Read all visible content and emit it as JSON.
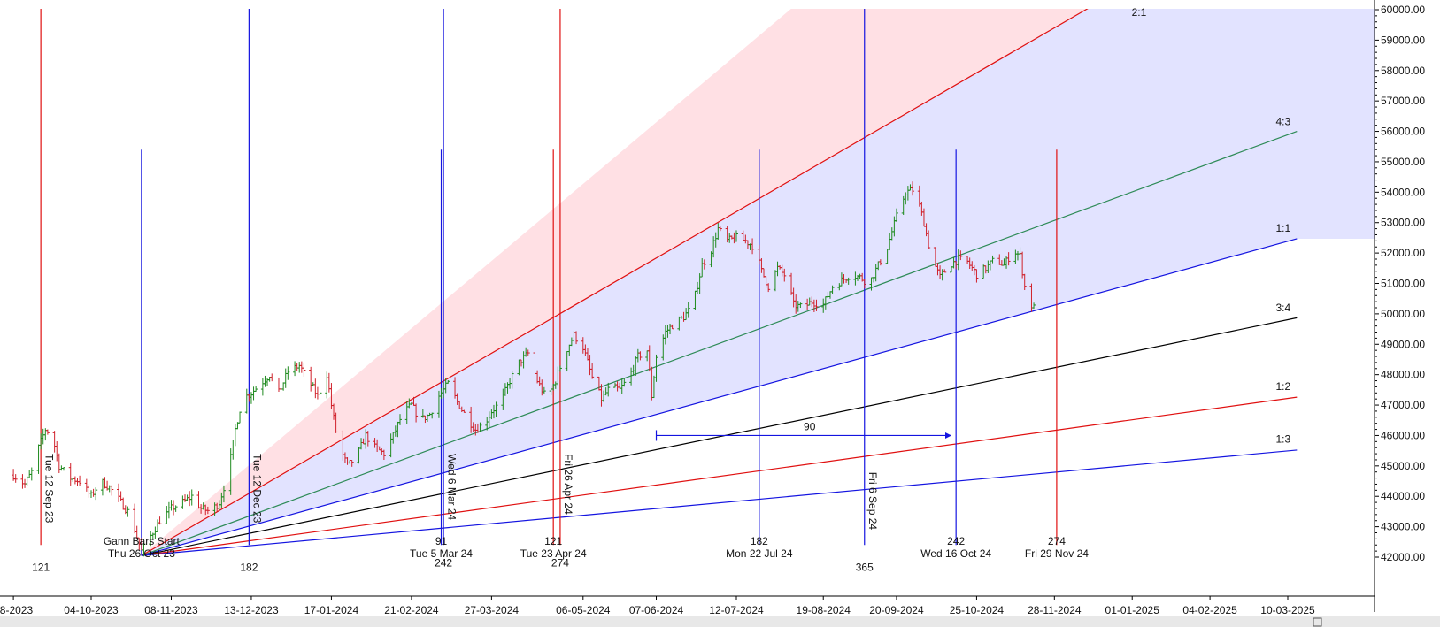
{
  "chart_data": {
    "type": "bar",
    "subtype": "ohlc-price-chart-with-gann-fan",
    "x_tick_labels": [
      "08-2023",
      "04-10-2023",
      "08-11-2023",
      "13-12-2023",
      "17-01-2024",
      "21-02-2024",
      "27-03-2024",
      "06-05-2024",
      "07-06-2024",
      "12-07-2024",
      "19-08-2024",
      "20-09-2024",
      "25-10-2024",
      "28-11-2024",
      "01-01-2025",
      "04-02-2025",
      "10-03-2025"
    ],
    "x_tick_dates": [
      "2023-08-31",
      "2023-10-04",
      "2023-11-08",
      "2023-12-13",
      "2024-01-17",
      "2024-02-21",
      "2024-03-27",
      "2024-05-06",
      "2024-06-07",
      "2024-07-12",
      "2024-08-19",
      "2024-09-20",
      "2024-10-25",
      "2024-11-28",
      "2025-01-01",
      "2025-02-04",
      "2025-03-10"
    ],
    "y_ticks": [
      42000,
      43000,
      44000,
      45000,
      46000,
      47000,
      48000,
      49000,
      50000,
      51000,
      52000,
      53000,
      54000,
      55000,
      56000,
      57000,
      58000,
      59000,
      60000
    ],
    "y_tick_labels": [
      "42000.00",
      "43000.00",
      "44000.00",
      "45000.00",
      "46000.00",
      "47000.00",
      "48000.00",
      "49000.00",
      "50000.00",
      "51000.00",
      "52000.00",
      "53000.00",
      "54000.00",
      "55000.00",
      "56000.00",
      "57000.00",
      "58000.00",
      "59000.00",
      "60000.00"
    ],
    "ylim": [
      41800,
      60100
    ],
    "colors": {
      "up": "#1e8a1e",
      "down": "#d0202a",
      "red_line": "#e01010",
      "blue_line": "#1414e0",
      "green_line": "#2e8b57",
      "black_line": "#000000",
      "red_fill": "#ffe0e4",
      "blue_fill": "#e2e3ff"
    },
    "gann_origin": {
      "date": "2023-10-26",
      "price": 42050
    },
    "gann_fan": [
      {
        "label": "2:1",
        "end": {
          "date": "2024-12-14",
          "price": 60100
        },
        "color": "red_line"
      },
      {
        "label": "4:3",
        "end": {
          "date": "2025-03-14",
          "price": 56000
        },
        "color": "green_line"
      },
      {
        "label": "1:1",
        "end": {
          "date": "2025-03-14",
          "price": 52470
        },
        "color": "blue_line"
      },
      {
        "label": "3:4",
        "end": {
          "date": "2025-03-14",
          "price": 49870
        },
        "color": "black_line"
      },
      {
        "label": "1:2",
        "end": {
          "date": "2025-03-14",
          "price": 47260
        },
        "color": "red_line"
      },
      {
        "label": "1:3",
        "end": {
          "date": "2025-03-14",
          "price": 45520
        },
        "color": "blue_line"
      }
    ],
    "fan_label_positions": [
      {
        "text": "2:1",
        "date": "2025-01-04",
        "price": 59800
      },
      {
        "text": "4:3",
        "date": "2025-03-08",
        "price": 56200
      },
      {
        "text": "1:1",
        "date": "2025-03-08",
        "price": 52700
      },
      {
        "text": "3:4",
        "date": "2025-03-08",
        "price": 50080
      },
      {
        "text": "1:2",
        "date": "2025-03-08",
        "price": 47500
      },
      {
        "text": "1:3",
        "date": "2025-03-08",
        "price": 45760
      }
    ],
    "vertical_lines": [
      {
        "date": "2023-09-12",
        "color": "red_line",
        "top": 60100,
        "bottom": 42400
      },
      {
        "date": "2023-10-26",
        "color": "blue_line",
        "top": 55400,
        "bottom": 42050
      },
      {
        "date": "2023-12-12",
        "color": "blue_line",
        "top": 60100,
        "bottom": 42400
      },
      {
        "date": "2024-03-05",
        "color": "blue_line",
        "top": 55400,
        "bottom": 42400
      },
      {
        "date": "2024-03-06",
        "color": "blue_line",
        "top": 60100,
        "bottom": 42400
      },
      {
        "date": "2024-04-23",
        "color": "red_line",
        "top": 55400,
        "bottom": 42400
      },
      {
        "date": "2024-04-26",
        "color": "red_line",
        "top": 60100,
        "bottom": 42400
      },
      {
        "date": "2024-07-22",
        "color": "blue_line",
        "top": 55400,
        "bottom": 42400
      },
      {
        "date": "2024-09-06",
        "color": "blue_line",
        "top": 60100,
        "bottom": 42400
      },
      {
        "date": "2024-10-16",
        "color": "blue_line",
        "top": 55400,
        "bottom": 42400
      },
      {
        "date": "2024-11-29",
        "color": "red_line",
        "top": 55400,
        "bottom": 42400
      }
    ],
    "fills": [
      {
        "color": "red_fill",
        "upper": [
          {
            "date": "2023-10-26",
            "price": 42050
          },
          {
            "date": "2024-08-06",
            "price": 60100
          }
        ],
        "lower_line": "2:1"
      },
      {
        "color": "blue_fill",
        "upper_line": "2:1",
        "lower_line": "1:1"
      }
    ],
    "measure_arrow": {
      "start": {
        "date": "2024-06-07",
        "price": 46000
      },
      "end": {
        "date": "2024-10-14",
        "price": 46000
      },
      "label": "90",
      "label_date": "2024-08-13",
      "label_price": 46170,
      "color": "blue_line"
    },
    "annotations": [
      {
        "text": "Gann Bars Start",
        "date": "2023-10-26",
        "price": 42400,
        "rotate": false
      },
      {
        "text": "Thu 26 Oct 23",
        "date": "2023-10-26",
        "price": 42000,
        "rotate": false
      },
      {
        "text": "121",
        "date": "2023-09-12",
        "price": 41550,
        "rotate": false
      },
      {
        "text": "182",
        "date": "2023-12-12",
        "price": 41550,
        "rotate": false
      },
      {
        "text": "91",
        "date": "2024-03-05",
        "price": 42400,
        "rotate": false
      },
      {
        "text": "Tue 5 Mar 24",
        "date": "2024-03-05",
        "price": 42000,
        "rotate": false
      },
      {
        "text": "242",
        "date": "2024-03-06",
        "price": 41700,
        "rotate": false
      },
      {
        "text": "121",
        "date": "2024-04-23",
        "price": 42400,
        "rotate": false
      },
      {
        "text": "Tue 23 Apr 24",
        "date": "2024-04-23",
        "price": 42000,
        "rotate": false
      },
      {
        "text": "274",
        "date": "2024-04-26",
        "price": 41700,
        "rotate": false
      },
      {
        "text": "182",
        "date": "2024-07-22",
        "price": 42400,
        "rotate": false
      },
      {
        "text": "Mon 22 Jul 24",
        "date": "2024-07-22",
        "price": 42000,
        "rotate": false
      },
      {
        "text": "365",
        "date": "2024-09-06",
        "price": 41550,
        "rotate": false
      },
      {
        "text": "242",
        "date": "2024-10-16",
        "price": 42400,
        "rotate": false
      },
      {
        "text": "Wed 16 Oct 24",
        "date": "2024-10-16",
        "price": 42000,
        "rotate": false
      },
      {
        "text": "274",
        "date": "2024-11-29",
        "price": 42400,
        "rotate": false
      },
      {
        "text": "Fri 29 Nov 24",
        "date": "2024-11-29",
        "price": 42000,
        "rotate": false
      },
      {
        "text": "Tue 12 Sep 23",
        "date": "2023-09-14",
        "price": 45400,
        "rotate": true
      },
      {
        "text": "Tue 12 Dec 23",
        "date": "2023-12-14",
        "price": 45400,
        "rotate": true
      },
      {
        "text": "Wed 6 Mar 24",
        "date": "2024-03-08",
        "price": 45400,
        "rotate": true
      },
      {
        "text": "Fri 26 Apr 24",
        "date": "2024-04-28",
        "price": 45400,
        "rotate": true
      },
      {
        "text": "Fri 6 Sep 24",
        "date": "2024-09-08",
        "price": 44800,
        "rotate": true
      }
    ],
    "price_path": [
      [
        "2023-08-31",
        44700
      ],
      [
        "2023-09-05",
        44400
      ],
      [
        "2023-09-08",
        44800
      ],
      [
        "2023-09-11",
        45600
      ],
      [
        "2023-09-14",
        46200
      ],
      [
        "2023-09-17",
        46000
      ],
      [
        "2023-09-20",
        45000
      ],
      [
        "2023-09-25",
        44600
      ],
      [
        "2023-09-29",
        44500
      ],
      [
        "2023-10-04",
        44000
      ],
      [
        "2023-10-08",
        44500
      ],
      [
        "2023-10-12",
        44300
      ],
      [
        "2023-10-16",
        43900
      ],
      [
        "2023-10-20",
        43500
      ],
      [
        "2023-10-23",
        42900
      ],
      [
        "2023-10-26",
        42200
      ],
      [
        "2023-10-30",
        42700
      ],
      [
        "2023-11-03",
        43200
      ],
      [
        "2023-11-08",
        43600
      ],
      [
        "2023-11-13",
        43800
      ],
      [
        "2023-11-17",
        44000
      ],
      [
        "2023-11-21",
        43600
      ],
      [
        "2023-11-25",
        43500
      ],
      [
        "2023-11-29",
        43800
      ],
      [
        "2023-12-03",
        44800
      ],
      [
        "2023-12-06",
        46200
      ],
      [
        "2023-12-09",
        47200
      ],
      [
        "2023-12-13",
        47400
      ],
      [
        "2023-12-17",
        47700
      ],
      [
        "2023-12-21",
        48000
      ],
      [
        "2023-12-25",
        47400
      ],
      [
        "2023-12-29",
        48100
      ],
      [
        "2024-01-03",
        48300
      ],
      [
        "2024-01-07",
        47800
      ],
      [
        "2024-01-11",
        47300
      ],
      [
        "2024-01-15",
        48000
      ],
      [
        "2024-01-17",
        47000
      ],
      [
        "2024-01-20",
        45700
      ],
      [
        "2024-01-24",
        45000
      ],
      [
        "2024-01-28",
        45300
      ],
      [
        "2024-02-01",
        46000
      ],
      [
        "2024-02-05",
        45600
      ],
      [
        "2024-02-09",
        45400
      ],
      [
        "2024-02-13",
        46000
      ],
      [
        "2024-02-17",
        46700
      ],
      [
        "2024-02-21",
        47000
      ],
      [
        "2024-02-25",
        46500
      ],
      [
        "2024-02-29",
        46700
      ],
      [
        "2024-03-04",
        47300
      ],
      [
        "2024-03-08",
        47700
      ],
      [
        "2024-03-12",
        47100
      ],
      [
        "2024-03-16",
        46600
      ],
      [
        "2024-03-20",
        46200
      ],
      [
        "2024-03-24",
        46400
      ],
      [
        "2024-03-27",
        46800
      ],
      [
        "2024-03-31",
        47100
      ],
      [
        "2024-04-04",
        47800
      ],
      [
        "2024-04-08",
        48400
      ],
      [
        "2024-04-12",
        48700
      ],
      [
        "2024-04-16",
        47800
      ],
      [
        "2024-04-20",
        47200
      ],
      [
        "2024-04-24",
        47800
      ],
      [
        "2024-04-28",
        48700
      ],
      [
        "2024-05-02",
        49300
      ],
      [
        "2024-05-06",
        48900
      ],
      [
        "2024-05-10",
        47900
      ],
      [
        "2024-05-14",
        47200
      ],
      [
        "2024-05-18",
        47600
      ],
      [
        "2024-05-22",
        47500
      ],
      [
        "2024-05-26",
        47900
      ],
      [
        "2024-05-30",
        48600
      ],
      [
        "2024-06-03",
        48800
      ],
      [
        "2024-06-05",
        47300
      ],
      [
        "2024-06-07",
        48600
      ],
      [
        "2024-06-11",
        49400
      ],
      [
        "2024-06-15",
        49700
      ],
      [
        "2024-06-19",
        49900
      ],
      [
        "2024-06-23",
        50300
      ],
      [
        "2024-06-27",
        51600
      ],
      [
        "2024-07-01",
        52100
      ],
      [
        "2024-07-04",
        52800
      ],
      [
        "2024-07-08",
        52400
      ],
      [
        "2024-07-12",
        52500
      ],
      [
        "2024-07-16",
        52400
      ],
      [
        "2024-07-20",
        52200
      ],
      [
        "2024-07-23",
        51400
      ],
      [
        "2024-07-26",
        50900
      ],
      [
        "2024-07-30",
        51500
      ],
      [
        "2024-08-03",
        51200
      ],
      [
        "2024-08-06",
        50300
      ],
      [
        "2024-08-10",
        50200
      ],
      [
        "2024-08-14",
        50400
      ],
      [
        "2024-08-19",
        50300
      ],
      [
        "2024-08-23",
        50900
      ],
      [
        "2024-08-27",
        51100
      ],
      [
        "2024-08-31",
        51300
      ],
      [
        "2024-09-04",
        51200
      ],
      [
        "2024-09-08",
        51000
      ],
      [
        "2024-09-12",
        51600
      ],
      [
        "2024-09-16",
        52200
      ],
      [
        "2024-09-20",
        53200
      ],
      [
        "2024-09-24",
        54000
      ],
      [
        "2024-09-28",
        54100
      ],
      [
        "2024-10-02",
        53000
      ],
      [
        "2024-10-05",
        51900
      ],
      [
        "2024-10-09",
        51200
      ],
      [
        "2024-10-13",
        51600
      ],
      [
        "2024-10-17",
        51800
      ],
      [
        "2024-10-21",
        51700
      ],
      [
        "2024-10-25",
        51300
      ],
      [
        "2024-10-29",
        51500
      ],
      [
        "2024-11-02",
        51800
      ],
      [
        "2024-11-06",
        51600
      ],
      [
        "2024-11-10",
        52100
      ],
      [
        "2024-11-13",
        51900
      ],
      [
        "2024-11-16",
        50400
      ],
      [
        "2024-11-19",
        50200
      ]
    ]
  }
}
